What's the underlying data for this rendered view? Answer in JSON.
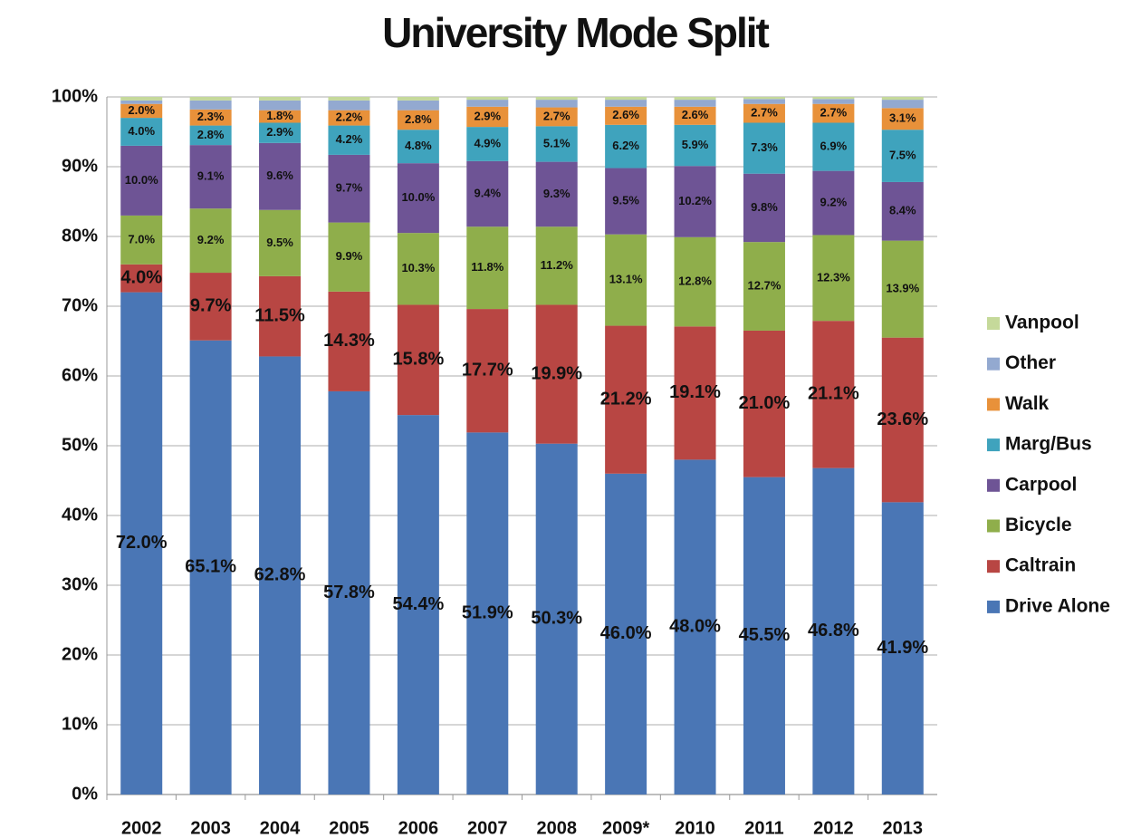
{
  "chart_data": {
    "type": "stacked_bar",
    "title": "University Mode Split",
    "categories": [
      "2002",
      "2003",
      "2004",
      "2005",
      "2006",
      "2007",
      "2008",
      "2009*",
      "2010",
      "2011",
      "2012",
      "2013"
    ],
    "ylim": [
      0,
      100
    ],
    "yticks": [
      {
        "value": 0,
        "label": "0%"
      },
      {
        "value": 10,
        "label": "10%"
      },
      {
        "value": 20,
        "label": "20%"
      },
      {
        "value": 30,
        "label": "30%"
      },
      {
        "value": 40,
        "label": "40%"
      },
      {
        "value": 50,
        "label": "50%"
      },
      {
        "value": 60,
        "label": "60%"
      },
      {
        "value": 70,
        "label": "70%"
      },
      {
        "value": 80,
        "label": "80%"
      },
      {
        "value": 90,
        "label": "90%"
      },
      {
        "value": 100,
        "label": "100%"
      }
    ],
    "grid": true,
    "legend": "right",
    "series": [
      {
        "name": "Drive Alone",
        "color": "#4a76b5",
        "values": [
          72.0,
          65.1,
          62.8,
          57.8,
          54.4,
          51.9,
          50.3,
          46.0,
          48.0,
          45.5,
          46.8,
          41.9
        ],
        "value_labels": [
          "72.0%",
          "65.1%",
          "62.8%",
          "57.8%",
          "54.4%",
          "51.9%",
          "50.3%",
          "46.0%",
          "48.0%",
          "45.5%",
          "46.8%",
          "41.9%"
        ]
      },
      {
        "name": "Caltrain",
        "color": "#b84643",
        "values": [
          4.0,
          9.7,
          11.5,
          14.3,
          15.8,
          17.7,
          19.9,
          21.2,
          19.1,
          21.0,
          21.1,
          23.6
        ],
        "value_labels": [
          "4.0%",
          "9.7%",
          "11.5%",
          "14.3%",
          "15.8%",
          "17.7%",
          "19.9%",
          "21.2%",
          "19.1%",
          "21.0%",
          "21.1%",
          "23.6%"
        ]
      },
      {
        "name": "Bicycle",
        "color": "#8fae4b",
        "values": [
          7.0,
          9.2,
          9.5,
          9.9,
          10.3,
          11.8,
          11.2,
          13.1,
          12.8,
          12.7,
          12.3,
          13.9
        ],
        "value_labels": [
          "7.0%",
          "9.2%",
          "9.5%",
          "9.9%",
          "10.3%",
          "11.8%",
          "11.2%",
          "13.1%",
          "12.8%",
          "12.7%",
          "12.3%",
          "13.9%"
        ]
      },
      {
        "name": "Carpool",
        "color": "#6e5495",
        "values": [
          10.0,
          9.1,
          9.6,
          9.7,
          10.0,
          9.4,
          9.3,
          9.5,
          10.2,
          9.8,
          9.2,
          8.4
        ],
        "value_labels": [
          "10.0%",
          "9.1%",
          "9.6%",
          "9.7%",
          "10.0%",
          "9.4%",
          "9.3%",
          "9.5%",
          "10.2%",
          "9.8%",
          "9.2%",
          "8.4%"
        ]
      },
      {
        "name": "Marg/Bus",
        "color": "#3fa3bd",
        "values": [
          4.0,
          2.8,
          2.9,
          4.2,
          4.8,
          4.9,
          5.1,
          6.2,
          5.9,
          7.3,
          6.9,
          7.5
        ],
        "value_labels": [
          "4.0%",
          "2.8%",
          "2.9%",
          "4.2%",
          "4.8%",
          "4.9%",
          "5.1%",
          "6.2%",
          "5.9%",
          "7.3%",
          "6.9%",
          "7.5%"
        ]
      },
      {
        "name": "Walk",
        "color": "#e8913a",
        "values": [
          2.0,
          2.3,
          1.8,
          2.2,
          2.8,
          2.9,
          2.7,
          2.6,
          2.6,
          2.7,
          2.7,
          3.1
        ],
        "value_labels": [
          "2.0%",
          "2.3%",
          "1.8%",
          "2.2%",
          "2.8%",
          "2.9%",
          "2.7%",
          "2.6%",
          "2.6%",
          "2.7%",
          "2.7%",
          "3.1%"
        ]
      },
      {
        "name": "Other",
        "color": "#93a9d0",
        "values": [
          0.5,
          1.3,
          1.4,
          1.4,
          1.4,
          1.0,
          1.1,
          1.0,
          1.0,
          0.7,
          0.7,
          1.2
        ]
      },
      {
        "name": "Vanpool",
        "color": "#c5d99a",
        "values": [
          0.5,
          0.5,
          0.5,
          0.5,
          0.5,
          0.4,
          0.4,
          0.4,
          0.4,
          0.3,
          0.3,
          0.4
        ]
      }
    ]
  }
}
